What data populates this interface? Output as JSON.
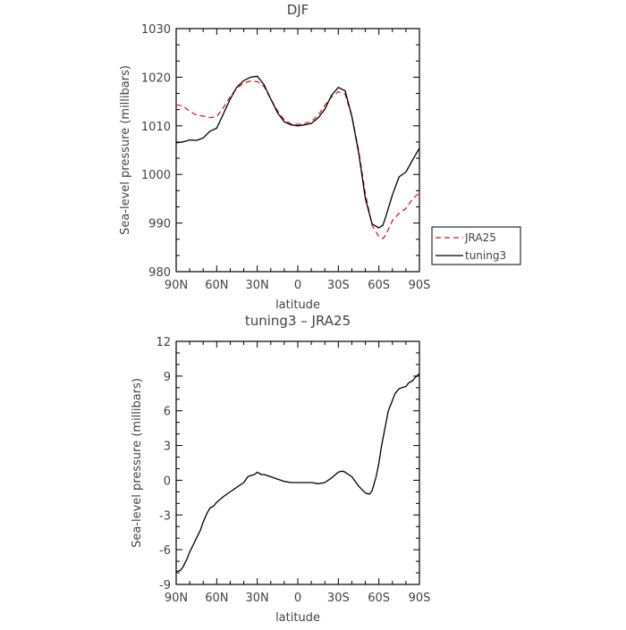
{
  "chart_data": [
    {
      "type": "line",
      "title": "DJF",
      "xlabel": "latitude",
      "ylabel": "Sea-level pressure (millibars)",
      "x_ticks": [
        "90N",
        "60N",
        "30N",
        "0",
        "30S",
        "60S",
        "90S"
      ],
      "y_ticks": [
        "1030",
        "1020",
        "1010",
        "1000",
        "990",
        "980"
      ],
      "xlim": [
        90,
        -90
      ],
      "ylim": [
        980,
        1030
      ],
      "legend_position": "right",
      "series": [
        {
          "name": "JRA25",
          "color": "#e8141c",
          "dash": "dashed",
          "x": [
            90,
            85,
            80,
            75,
            70,
            65,
            60,
            55,
            50,
            45,
            40,
            35,
            30,
            25,
            20,
            15,
            10,
            5,
            0,
            -5,
            -10,
            -15,
            -20,
            -25,
            -30,
            -35,
            -40,
            -45,
            -50,
            -55,
            -60,
            -63,
            -65,
            -70,
            -75,
            -80,
            -85,
            -90
          ],
          "y": [
            1014.3,
            1014.1,
            1013.0,
            1012.2,
            1012.0,
            1011.7,
            1011.9,
            1013.8,
            1016.0,
            1017.8,
            1018.8,
            1019.2,
            1019.1,
            1018.1,
            1015.5,
            1013.1,
            1011.2,
            1010.4,
            1010.3,
            1010.5,
            1010.9,
            1012.1,
            1014.2,
            1016.0,
            1017.0,
            1016.5,
            1012.0,
            1005.0,
            996.0,
            989.5,
            987.2,
            986.8,
            987.5,
            990.5,
            992.0,
            993.0,
            995.0,
            996.2
          ]
        },
        {
          "name": "tuning3",
          "color": "#000000",
          "dash": "solid",
          "x": [
            90,
            85,
            80,
            75,
            70,
            65,
            60,
            55,
            50,
            45,
            40,
            35,
            30,
            25,
            20,
            15,
            10,
            5,
            0,
            -5,
            -10,
            -15,
            -20,
            -25,
            -30,
            -35,
            -40,
            -45,
            -50,
            -55,
            -60,
            -63,
            -65,
            -70,
            -75,
            -80,
            -85,
            -90
          ],
          "y": [
            1006.5,
            1006.7,
            1007.1,
            1007.0,
            1007.5,
            1008.9,
            1009.5,
            1012.5,
            1015.5,
            1018.0,
            1019.3,
            1020.0,
            1020.2,
            1018.5,
            1015.5,
            1012.7,
            1010.8,
            1010.2,
            1010.0,
            1010.2,
            1010.5,
            1011.6,
            1013.4,
            1016.3,
            1017.9,
            1017.2,
            1012.0,
            1004.5,
            995.0,
            989.8,
            989.0,
            989.6,
            991.2,
            995.8,
            999.5,
            1000.5,
            1003.0,
            1005.4
          ]
        }
      ]
    },
    {
      "type": "line",
      "title": "tuning3 – JRA25",
      "xlabel": "latitude",
      "ylabel": "Sea-level pressure (millibars)",
      "x_ticks": [
        "90N",
        "60N",
        "30N",
        "0",
        "30S",
        "60S",
        "90S"
      ],
      "y_ticks": [
        "12",
        "9",
        "6",
        "3",
        "0",
        "-3",
        "-6",
        "-9"
      ],
      "xlim": [
        90,
        -90
      ],
      "ylim": [
        -9,
        12
      ],
      "series": [
        {
          "color": "#000000",
          "dash": "solid",
          "x": [
            90,
            87,
            85,
            82,
            80,
            77,
            75,
            72,
            70,
            67,
            65,
            62,
            60,
            55,
            50,
            45,
            40,
            37,
            35,
            32,
            30,
            27,
            25,
            20,
            15,
            10,
            5,
            0,
            -5,
            -10,
            -15,
            -20,
            -25,
            -30,
            -33,
            -35,
            -40,
            -45,
            -50,
            -53,
            -55,
            -58,
            -60,
            -62,
            -65,
            -67,
            -70,
            -72,
            -75,
            -77,
            -80,
            -82,
            -85,
            -87,
            -90
          ],
          "y": [
            -7.9,
            -7.8,
            -7.5,
            -6.8,
            -6.2,
            -5.5,
            -5.0,
            -4.3,
            -3.6,
            -2.8,
            -2.4,
            -2.2,
            -1.9,
            -1.4,
            -1.0,
            -0.6,
            -0.2,
            0.3,
            0.4,
            0.5,
            0.7,
            0.5,
            0.5,
            0.3,
            0.1,
            -0.1,
            -0.2,
            -0.2,
            -0.2,
            -0.2,
            -0.3,
            -0.2,
            0.2,
            0.7,
            0.8,
            0.7,
            0.3,
            -0.5,
            -1.1,
            -1.2,
            -0.9,
            0.3,
            1.5,
            3.0,
            4.8,
            6.0,
            6.9,
            7.5,
            7.9,
            8.0,
            8.1,
            8.4,
            8.6,
            8.9,
            9.2
          ]
        }
      ]
    }
  ]
}
